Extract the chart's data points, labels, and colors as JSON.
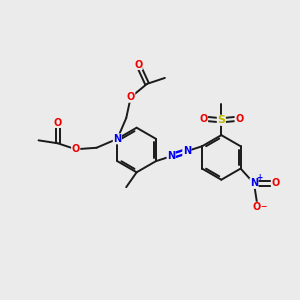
{
  "bg_color": "#ebebeb",
  "bond_color": "#1a1a1a",
  "bond_lw": 1.4,
  "N_color": "#0000ee",
  "O_color": "#ee0000",
  "S_color": "#bbbb00",
  "font_size": 7.0,
  "figsize": [
    3.0,
    3.0
  ],
  "dpi": 100,
  "xlim": [
    0,
    10
  ],
  "ylim": [
    0,
    10
  ]
}
